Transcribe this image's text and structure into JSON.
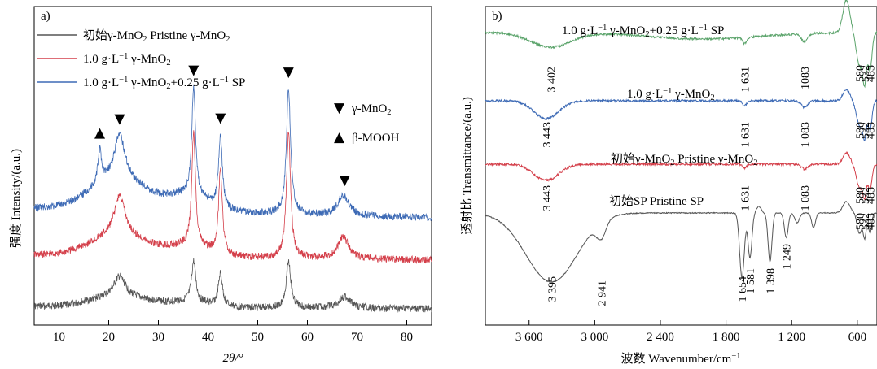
{
  "chart_data": [
    {
      "panel": "a)",
      "type": "line",
      "title": "",
      "xlabel": "2θ/°",
      "ylabel": "强度 Intensity/(a.u.)",
      "xlim": [
        5,
        85
      ],
      "xticks": [
        10,
        20,
        30,
        40,
        50,
        60,
        70,
        80
      ],
      "legend_position": "top-left",
      "series": [
        {
          "name": "初始γ-MnO2 Pristine γ-MnO2",
          "legend_parts": [
            [
              "初始γ-MnO",
              ""
            ],
            [
              "2",
              "sub"
            ],
            [
              " Pristine γ-MnO",
              ""
            ],
            [
              "2",
              "sub"
            ]
          ],
          "color": "#555555",
          "offset": 0,
          "peaks": [
            [
              22.2,
              25,
              1.4
            ],
            [
              37.1,
              50,
              0.5
            ],
            [
              42.5,
              40,
              0.5
            ],
            [
              56.2,
              58,
              0.55
            ],
            [
              67.5,
              14,
              1.4
            ]
          ]
        },
        {
          "name": "1.0 g·L−1 γ-MnO2",
          "legend_parts": [
            [
              "1.0 g·L",
              ""
            ],
            [
              "−1",
              "sup"
            ],
            [
              " γ-MnO",
              ""
            ],
            [
              "2",
              "sub"
            ]
          ],
          "color": "#d43f4a",
          "offset": 1,
          "peaks": [
            [
              22.2,
              50,
              1.3
            ],
            [
              37.1,
              140,
              0.45
            ],
            [
              42.5,
              105,
              0.45
            ],
            [
              56.2,
              155,
              0.5
            ],
            [
              67.2,
              28,
              1.3
            ]
          ]
        },
        {
          "name": "1.0 g·L−1 γ-MnO2+0.25 g·L−1 SP",
          "legend_parts": [
            [
              "1.0 g·L",
              ""
            ],
            [
              "−1",
              "sup"
            ],
            [
              " γ-MnO",
              ""
            ],
            [
              "2",
              "sub"
            ],
            [
              "+0.25 g·L",
              ""
            ],
            [
              "−1",
              "sup"
            ],
            [
              " SP",
              ""
            ]
          ],
          "color": "#3d6ab5",
          "offset": 2,
          "peaks": [
            [
              18.2,
              40,
              0.45
            ],
            [
              22.2,
              55,
              1.3
            ],
            [
              37.1,
              135,
              0.45
            ],
            [
              42.5,
              90,
              0.45
            ],
            [
              56.2,
              155,
              0.5
            ],
            [
              67.2,
              25,
              1.3
            ]
          ]
        }
      ],
      "markers": [
        {
          "symbol": "▲",
          "x": 18.2,
          "series": 2
        },
        {
          "symbol": "▼",
          "x": 22.2,
          "series": 2
        },
        {
          "symbol": "▼",
          "x": 37.1,
          "series": 2
        },
        {
          "symbol": "▼",
          "x": 42.5,
          "series": 2
        },
        {
          "symbol": "▼",
          "x": 56.2,
          "series": 2
        },
        {
          "symbol": "▼",
          "x": 67.5,
          "series": 2
        }
      ],
      "marker_legend": [
        {
          "symbol": "▼",
          "label": "γ-MnO2",
          "label_parts": [
            [
              "γ-MnO",
              ""
            ],
            [
              "2",
              "sub"
            ]
          ]
        },
        {
          "symbol": "▲",
          "label": "β-MOOH",
          "label_parts": [
            [
              "β-MOOH",
              ""
            ]
          ]
        }
      ]
    },
    {
      "panel": "b)",
      "type": "line",
      "title": "",
      "xlabel": "波数 Wavenumber/cm−1",
      "xlabel_parts": [
        [
          "波数 Wavenumber/cm",
          ""
        ],
        [
          "−1",
          "sup"
        ]
      ],
      "ylabel": "透射比 Transmittance/(a.u.)",
      "xlim": [
        4000,
        420
      ],
      "x_reversed": true,
      "xticks": [
        3600,
        3000,
        2400,
        1800,
        1200,
        600
      ],
      "xtick_labels": [
        "3 600",
        "3 000",
        "2 400",
        "1 800",
        "1 200",
        "600"
      ],
      "series": [
        {
          "name": "1.0 g·L−1 γ-MnO2+0.25 g·L−1 SP",
          "label_parts": [
            [
              "1.0 g·L",
              ""
            ],
            [
              "−1",
              "sup"
            ],
            [
              " γ-MnO",
              ""
            ],
            [
              "2",
              "sub"
            ],
            [
              "+0.25 g·L",
              ""
            ],
            [
              "−1",
              "sup"
            ],
            [
              " SP",
              ""
            ]
          ],
          "color": "#5aa36a",
          "band_labels": [
            "3 402",
            "1 631",
            "1083",
            "580",
            "532",
            "483"
          ],
          "bands": [
            [
              3402,
              3402,
              18,
              260
            ],
            [
              1631,
              1631,
              8,
              25
            ],
            [
              1083,
              1083,
              10,
              40
            ],
            [
              580,
              580,
              40,
              40
            ],
            [
              532,
              532,
              55,
              25
            ],
            [
              483,
              483,
              45,
              25
            ]
          ]
        },
        {
          "name": "1.0 g·L−1 γ-MnO2",
          "label_parts": [
            [
              "1.0 g·L",
              ""
            ],
            [
              "−1",
              "sup"
            ],
            [
              " γ-MnO",
              ""
            ],
            [
              "2",
              "sub"
            ]
          ],
          "color": "#3d6ab5",
          "band_labels": [
            "3 443",
            "1 631",
            "1 083",
            "580",
            "532",
            "483"
          ],
          "bands": [
            [
              3443,
              3443,
              22,
              160
            ],
            [
              1631,
              1631,
              6,
              25
            ],
            [
              1083,
              1083,
              8,
              40
            ],
            [
              580,
              580,
              30,
              40
            ],
            [
              532,
              532,
              40,
              25
            ],
            [
              483,
              483,
              35,
              25
            ]
          ]
        },
        {
          "name": "初始γ-MnO2 Pristine γ-MnO2",
          "label_parts": [
            [
              "初始γ-MnO",
              ""
            ],
            [
              "2",
              "sub"
            ],
            [
              " Pristine γ-MnO",
              ""
            ],
            [
              "2",
              "sub"
            ]
          ],
          "color": "#d43f4a",
          "band_labels": [
            "3 443",
            "1 631",
            "1 083",
            "580",
            "532",
            "483"
          ],
          "bands": [
            [
              3443,
              3443,
              20,
              160
            ],
            [
              1631,
              1631,
              5,
              25
            ],
            [
              1083,
              1083,
              6,
              40
            ],
            [
              580,
              580,
              28,
              40
            ],
            [
              532,
              532,
              35,
              25
            ],
            [
              483,
              483,
              30,
              25
            ]
          ]
        },
        {
          "name": "初始SP Pristine SP",
          "label_parts": [
            [
              "初始SP Pristine SP",
              ""
            ]
          ],
          "color": "#555555",
          "band_labels": [
            "3 395",
            "2 941",
            "1 654",
            "1 581",
            "1 398",
            "1 249",
            "580",
            "532",
            "483"
          ],
          "bands": [
            [
              3395,
              3395,
              85,
              330
            ],
            [
              2941,
              2941,
              20,
              60
            ],
            [
              1654,
              1654,
              80,
              30
            ],
            [
              1581,
              1581,
              55,
              25
            ],
            [
              1398,
              1398,
              60,
              25
            ],
            [
              1249,
              1249,
              30,
              25
            ],
            [
              580,
              580,
              25,
              30
            ],
            [
              532,
              532,
              30,
              20
            ],
            [
              483,
              483,
              25,
              20
            ]
          ]
        }
      ]
    }
  ]
}
